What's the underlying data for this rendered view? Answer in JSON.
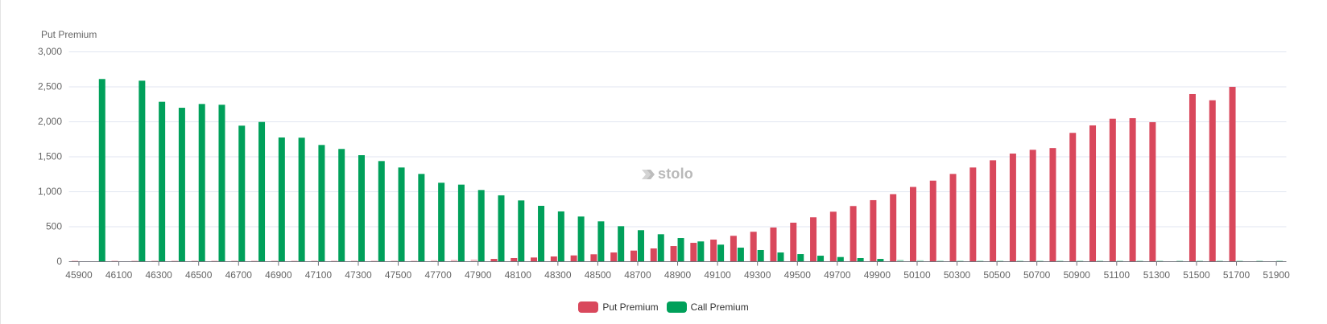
{
  "chart_data": {
    "type": "bar",
    "title": "",
    "ylabel": "Put Premium",
    "xlabel": "",
    "ylim": [
      0,
      3000
    ],
    "yticks": [
      0,
      500,
      1000,
      1500,
      2000,
      2500,
      3000
    ],
    "ytick_labels": [
      "0",
      "500",
      "1,000",
      "1,500",
      "2,000",
      "2,500",
      "3,000"
    ],
    "grid": true,
    "legend_position": "bottom",
    "categories": [
      45900,
      46000,
      46100,
      46200,
      46300,
      46400,
      46500,
      46600,
      46700,
      46800,
      46900,
      47000,
      47100,
      47200,
      47300,
      47400,
      47500,
      47600,
      47700,
      47800,
      47900,
      48000,
      48100,
      48200,
      48300,
      48400,
      48500,
      48600,
      48700,
      48800,
      48900,
      49000,
      49100,
      49200,
      49300,
      49400,
      49500,
      49600,
      49700,
      49800,
      49900,
      50000,
      50100,
      50200,
      50300,
      50400,
      50500,
      50600,
      50700,
      50800,
      50900,
      51000,
      51100,
      51200,
      51300,
      51400,
      51500,
      51600,
      51700,
      51800,
      51900
    ],
    "xtick_labels": [
      "45900",
      "46100",
      "46300",
      "46500",
      "46700",
      "46900",
      "47100",
      "47300",
      "47500",
      "47700",
      "47900",
      "48100",
      "48300",
      "48500",
      "48700",
      "48900",
      "49100",
      "49300",
      "49500",
      "49700",
      "49900",
      "50100",
      "50300",
      "50500",
      "50700",
      "50900",
      "51100",
      "51300",
      "51500",
      "51700",
      "51900"
    ],
    "series": [
      {
        "name": "Put Premium",
        "color": "#d9485c",
        "values": [
          1,
          0,
          1,
          1,
          2,
          2,
          2,
          2,
          3,
          3,
          3,
          4,
          5,
          5,
          7,
          9,
          9,
          11,
          15,
          22,
          26,
          34,
          46,
          54,
          69,
          84,
          100,
          126,
          153,
          184,
          218,
          264,
          310,
          364,
          422,
          483,
          552,
          629,
          709,
          790,
          874,
          960,
          1063,
          1153,
          1249,
          1341,
          1444,
          1540,
          1594,
          1619,
          1836,
          1943,
          2038,
          2046,
          1989,
          0,
          2391,
          2302,
          2494,
          0,
          0
        ]
      },
      {
        "name": "Call Premium",
        "color": "#00a05a",
        "values": [
          0,
          2606,
          0,
          2582,
          2280,
          2195,
          2249,
          2238,
          1939,
          1992,
          1770,
          1767,
          1663,
          1606,
          1517,
          1433,
          1341,
          1249,
          1123,
          1096,
          1019,
          943,
          870,
          793,
          713,
          640,
          571,
          502,
          445,
          387,
          333,
          284,
          238,
          195,
          161,
          126,
          103,
          80,
          61,
          46,
          34,
          23,
          15,
          12,
          8,
          6,
          4,
          3,
          2,
          2,
          1,
          1,
          1,
          1,
          1,
          1,
          1,
          1,
          1,
          1,
          1
        ]
      }
    ]
  },
  "watermark": {
    "text": "stolo",
    "icon": "double-chevron-right-icon"
  },
  "legend": {
    "items": [
      {
        "label": "Put Premium",
        "color": "#d9485c"
      },
      {
        "label": "Call Premium",
        "color": "#00a05a"
      }
    ]
  }
}
